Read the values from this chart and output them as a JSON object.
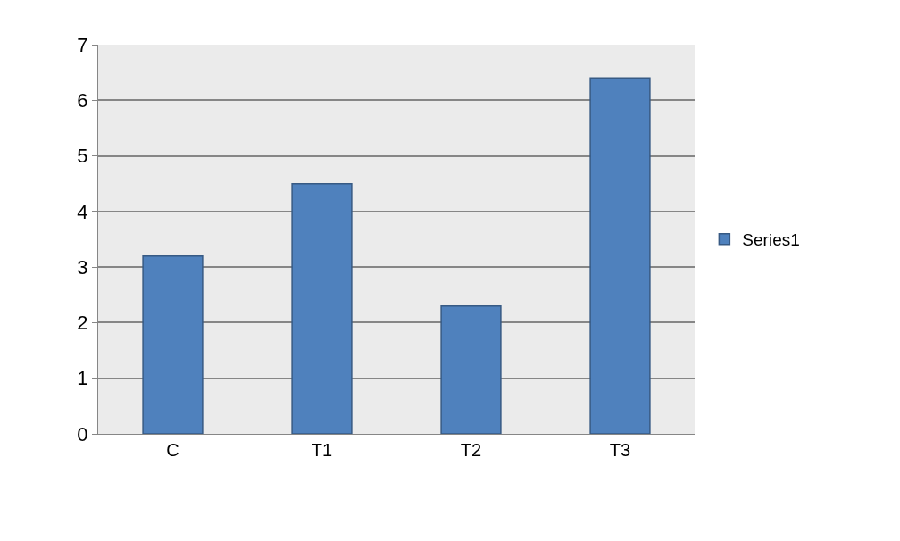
{
  "chart_data": {
    "type": "bar",
    "categories": [
      "C",
      "T1",
      "T2",
      "T3"
    ],
    "series": [
      {
        "name": "Series1",
        "color": "#4f81bd",
        "values": [
          3.2,
          4.5,
          2.3,
          6.4
        ]
      }
    ],
    "ylim": [
      0,
      7
    ],
    "yticks": [
      0,
      1,
      2,
      3,
      4,
      5,
      6,
      7
    ],
    "grid": "y",
    "legend": "right"
  }
}
